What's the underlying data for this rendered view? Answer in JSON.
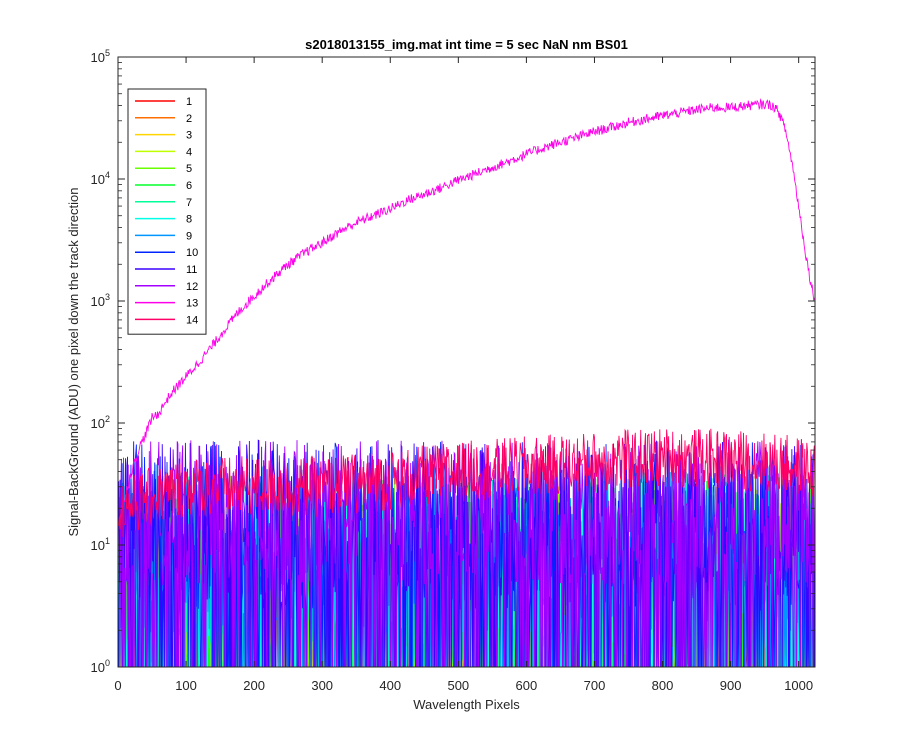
{
  "chart_data": {
    "type": "line",
    "title": "s2018013155_img.mat int time = 5 sec  NaN nm BS01",
    "xlabel": "Wavelength Pixels",
    "ylabel": "Signal-BackGround (ADU) one pixel down the track direction",
    "xlim": [
      0,
      1024
    ],
    "ylim": [
      1,
      100000
    ],
    "yscale": "log",
    "x_ticks": [
      "0",
      "100",
      "200",
      "300",
      "400",
      "500",
      "600",
      "700",
      "800",
      "900",
      "1000"
    ],
    "x_tick_values": [
      0,
      100,
      200,
      300,
      400,
      500,
      600,
      700,
      800,
      900,
      1000
    ],
    "y_ticks": [
      {
        "base": "10",
        "exp": "0",
        "value": 1
      },
      {
        "base": "10",
        "exp": "1",
        "value": 10
      },
      {
        "base": "10",
        "exp": "2",
        "value": 100
      },
      {
        "base": "10",
        "exp": "3",
        "value": 1000
      },
      {
        "base": "10",
        "exp": "4",
        "value": 10000
      },
      {
        "base": "10",
        "exp": "5",
        "value": 100000
      }
    ],
    "grid": false,
    "legend_position": "top-left",
    "series": [
      {
        "name": "1",
        "color": "#ff0000",
        "level": 1.2,
        "noise": 0.9
      },
      {
        "name": "2",
        "color": "#ff6e00",
        "level": 1.3,
        "noise": 0.9
      },
      {
        "name": "3",
        "color": "#ffd500",
        "level": 2,
        "noise": 0.8
      },
      {
        "name": "4",
        "color": "#c0ff00",
        "level": 4,
        "noise": 0.8
      },
      {
        "name": "5",
        "color": "#6aff00",
        "level": 5,
        "noise": 0.8
      },
      {
        "name": "6",
        "color": "#00ff2a",
        "level": 5,
        "noise": 0.8
      },
      {
        "name": "7",
        "color": "#00ff9a",
        "level": 5,
        "noise": 0.8
      },
      {
        "name": "8",
        "color": "#00ffe6",
        "level": 6,
        "noise": 0.75
      },
      {
        "name": "9",
        "color": "#0096ff",
        "level": 8,
        "noise": 0.7
      },
      {
        "name": "10",
        "color": "#0024ff",
        "level": 12,
        "noise": 0.7
      },
      {
        "name": "11",
        "color": "#3c00ff",
        "level": 14,
        "noise": 0.65
      },
      {
        "name": "12",
        "color": "#a400ff",
        "level": 16,
        "noise": 0.6
      },
      {
        "name": "13",
        "color": "#ff00ea",
        "x": [
          1,
          10,
          20,
          30,
          40,
          50,
          60,
          70,
          80,
          100,
          120,
          140,
          160,
          180,
          200,
          225,
          250,
          275,
          300,
          325,
          350,
          375,
          400,
          425,
          450,
          475,
          500,
          525,
          550,
          575,
          600,
          625,
          650,
          675,
          700,
          725,
          750,
          775,
          800,
          825,
          850,
          875,
          900,
          925,
          950,
          960,
          970,
          980,
          990,
          1000,
          1010,
          1018,
          1024
        ],
        "y": [
          15,
          25,
          40,
          60,
          80,
          110,
          120,
          150,
          180,
          240,
          320,
          440,
          620,
          850,
          1100,
          1500,
          2000,
          2500,
          3000,
          3700,
          4400,
          5000,
          5700,
          6700,
          7500,
          8500,
          9800,
          11000,
          12500,
          14000,
          16000,
          18000,
          20000,
          22000,
          24500,
          26500,
          29000,
          31000,
          33000,
          35000,
          37000,
          38500,
          38500,
          40000,
          41000,
          40500,
          36000,
          26000,
          14000,
          6000,
          2500,
          1400,
          1000
        ]
      },
      {
        "name": "14",
        "color": "#ff0066",
        "x": [
          0,
          100,
          200,
          300,
          400,
          500,
          600,
          700,
          800,
          900,
          950,
          1000,
          1024
        ],
        "y": [
          20,
          30,
          30,
          30,
          34,
          40,
          44,
          48,
          52,
          50,
          48,
          44,
          40
        ],
        "noise": 0.25
      }
    ]
  }
}
